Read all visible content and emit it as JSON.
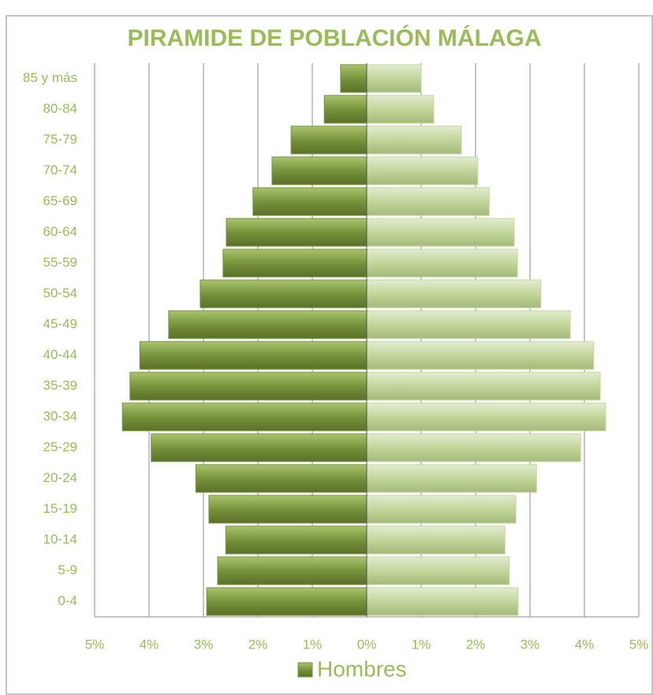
{
  "chart_data": {
    "type": "bar",
    "orientation": "horizontal",
    "title": "PIRAMIDE DE POBLACIÓN MÁLAGA",
    "categories": [
      "0-4",
      "5-9",
      "10-14",
      "15-19",
      "20-24",
      "25-29",
      "30-34",
      "35-39",
      "40-44",
      "45-49",
      "50-54",
      "55-59",
      "60-64",
      "65-69",
      "70-74",
      "75-79",
      "80-84",
      "85 y más"
    ],
    "series": [
      {
        "name": "Hombres",
        "color": "#77933c",
        "values": [
          -2.94,
          -2.74,
          -2.59,
          -2.9,
          -3.14,
          -3.96,
          -4.49,
          -4.35,
          -4.17,
          -3.64,
          -3.06,
          -2.64,
          -2.58,
          -2.09,
          -1.74,
          -1.39,
          -0.78,
          -0.48
        ]
      },
      {
        "color": "#c3d69b",
        "values": [
          2.78,
          2.62,
          2.54,
          2.74,
          3.12,
          3.93,
          4.39,
          4.29,
          4.17,
          3.74,
          3.2,
          2.77,
          2.71,
          2.25,
          2.04,
          1.74,
          1.23,
          1.0
        ]
      }
    ],
    "xlim": [
      -5,
      5
    ],
    "xticks": [
      {
        "value": -5,
        "label": "5%"
      },
      {
        "value": -4,
        "label": "4%"
      },
      {
        "value": -3,
        "label": "3%"
      },
      {
        "value": -2,
        "label": "2%"
      },
      {
        "value": -1,
        "label": "1%"
      },
      {
        "value": 0,
        "label": "0%"
      },
      {
        "value": 1,
        "label": "1%"
      },
      {
        "value": 2,
        "label": "2%"
      },
      {
        "value": 3,
        "label": "3%"
      },
      {
        "value": 4,
        "label": "4%"
      },
      {
        "value": 5,
        "label": "5%"
      }
    ],
    "grid": true,
    "legend": "bottom"
  }
}
